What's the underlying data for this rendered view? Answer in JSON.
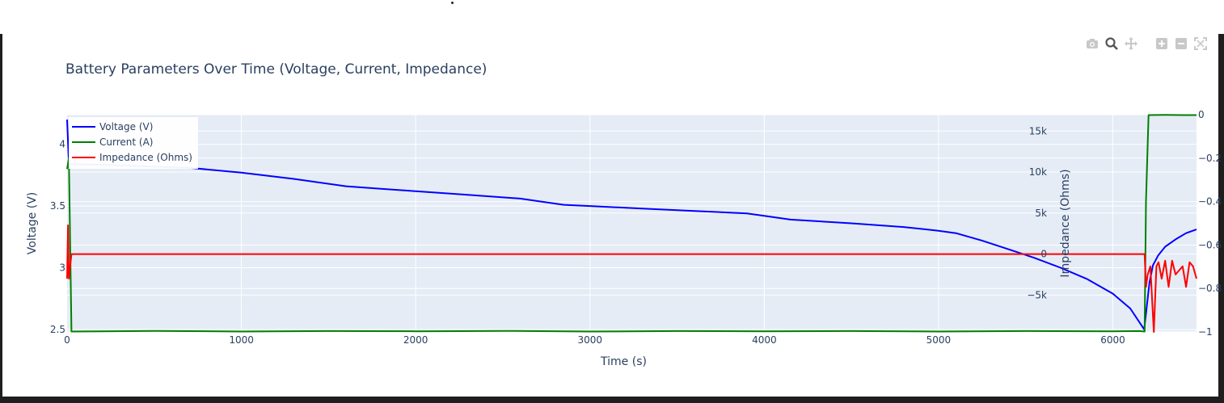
{
  "colors": {
    "plot_bg": "#e5ecf6",
    "grid": "#ffffff",
    "axis_text": "#2a3f5f",
    "voltage": "#0000ff",
    "current": "#008000",
    "impedance": "#ff0000"
  },
  "modebar": {
    "icons": [
      "camera-icon",
      "zoom-icon",
      "pan-icon",
      "zoom-in-icon",
      "zoom-out-icon",
      "autoscale-icon"
    ]
  },
  "chart_data": {
    "type": "line",
    "title": "Battery Parameters Over Time (Voltage, Current, Impedance)",
    "xlabel": "Time (s)",
    "ylabel": "Voltage (V)",
    "y2label": "Impedance (Ohms)",
    "xlim": [
      0,
      6480
    ],
    "ylim": [
      2.48,
      4.24
    ],
    "y2lim": [
      -9500,
      17000
    ],
    "y3lim": [
      -1.0,
      0.0
    ],
    "grid": true,
    "legend_position": "top-left",
    "x_ticks": [
      0,
      1000,
      2000,
      3000,
      4000,
      5000,
      6000
    ],
    "y_ticks": [
      2.5,
      3,
      3.5,
      4
    ],
    "y_tick_labels": [
      "2.5",
      "3",
      "3.5",
      "4"
    ],
    "y2_ticks": [
      -5000,
      0,
      5000,
      10000,
      15000
    ],
    "y2_tick_labels": [
      "−5k",
      "0",
      "5k",
      "10k",
      "15k"
    ],
    "y3_ticks": [
      0,
      -0.2,
      -0.4,
      -0.6,
      -0.8,
      -1
    ],
    "y3_tick_labels": [
      "0",
      "−0.2",
      "−0.4",
      "−0.6",
      "−0.8",
      "−1"
    ],
    "series": [
      {
        "name": "Voltage (V)",
        "axis": "y",
        "x": [
          0,
          10,
          20,
          300,
          700,
          1000,
          1300,
          1600,
          1800,
          2000,
          2300,
          2600,
          2700,
          2850,
          3000,
          3300,
          3600,
          3900,
          4000,
          4150,
          4500,
          4800,
          5000,
          5100,
          5250,
          5400,
          5550,
          5700,
          5850,
          6000,
          6100,
          6180,
          6210,
          6230,
          6260,
          6300,
          6360,
          6420,
          6480
        ],
        "y": [
          4.2,
          3.85,
          3.84,
          3.83,
          3.81,
          3.77,
          3.72,
          3.66,
          3.64,
          3.62,
          3.59,
          3.56,
          3.54,
          3.51,
          3.5,
          3.48,
          3.46,
          3.44,
          3.42,
          3.39,
          3.36,
          3.33,
          3.3,
          3.28,
          3.22,
          3.15,
          3.08,
          3.0,
          2.91,
          2.79,
          2.67,
          2.5,
          2.88,
          3.02,
          3.1,
          3.17,
          3.23,
          3.28,
          3.31
        ]
      },
      {
        "name": "Current (A)",
        "axis": "y3",
        "x": [
          0,
          10,
          25,
          500,
          1000,
          1500,
          2000,
          2500,
          3000,
          3500,
          4000,
          4500,
          5000,
          5500,
          6000,
          6150,
          6182,
          6190,
          6205,
          6300,
          6400,
          6480
        ],
        "y": [
          -0.25,
          -0.2,
          -0.998,
          -0.995,
          -0.998,
          -0.996,
          -0.997,
          -0.995,
          -0.998,
          -0.996,
          -0.997,
          -0.996,
          -0.998,
          -0.996,
          -0.997,
          -0.996,
          -0.998,
          -0.4,
          -0.002,
          -0.001,
          -0.002,
          -0.002
        ]
      },
      {
        "name": "Impedance (Ohms)",
        "axis": "y2",
        "x": [
          0,
          5,
          10,
          15,
          25,
          40,
          1000,
          2000,
          3000,
          4000,
          5000,
          6000,
          6182,
          6190,
          6200,
          6215,
          6235,
          6250,
          6262,
          6280,
          6300,
          6320,
          6340,
          6360,
          6380,
          6400,
          6420,
          6440,
          6460,
          6480
        ],
        "y": [
          -3000,
          3500,
          -3000,
          -2000,
          0,
          0,
          0,
          0,
          0,
          0,
          0,
          0,
          0,
          -4000,
          -2500,
          -1500,
          -9500,
          -1500,
          -1000,
          -3000,
          -800,
          -4000,
          -800,
          -2500,
          -2000,
          -1500,
          -4000,
          -1000,
          -1500,
          -3000
        ]
      }
    ]
  }
}
